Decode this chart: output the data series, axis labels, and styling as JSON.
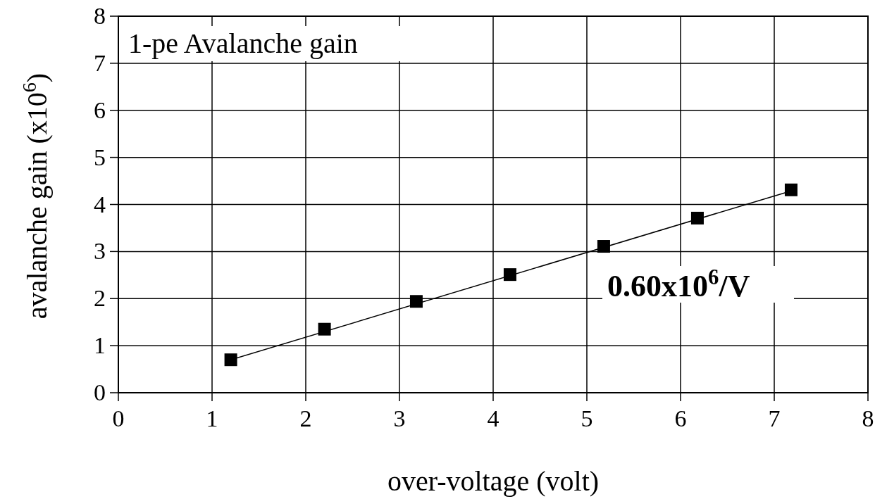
{
  "chart_data": {
    "type": "scatter",
    "title": "1-pe Avalanche gain",
    "xlabel": "over-voltage (volt)",
    "ylabel": "avalanche gain (x10$^{6}$)",
    "x": [
      1.2,
      2.2,
      3.18,
      4.18,
      5.18,
      6.18,
      7.18
    ],
    "series": [
      {
        "type": "scatter",
        "color": "#000000",
        "marker": "square",
        "values": [
          0.7,
          1.35,
          1.94,
          2.51,
          3.11,
          3.71,
          4.31
        ]
      },
      {
        "type": "line",
        "color": "#000000",
        "x": [
          1.2,
          7.2
        ],
        "values": [
          0.7,
          4.3
        ]
      }
    ],
    "xlim": [
      0,
      8
    ],
    "ylim": [
      0,
      8
    ],
    "xticks": [
      0,
      1,
      2,
      3,
      4,
      5,
      6,
      7,
      8
    ],
    "yticks": [
      0,
      1,
      2,
      3,
      4,
      5,
      6,
      7,
      8
    ],
    "grid": true,
    "annotations": [
      "0.60x10$^{6}$/V"
    ]
  }
}
